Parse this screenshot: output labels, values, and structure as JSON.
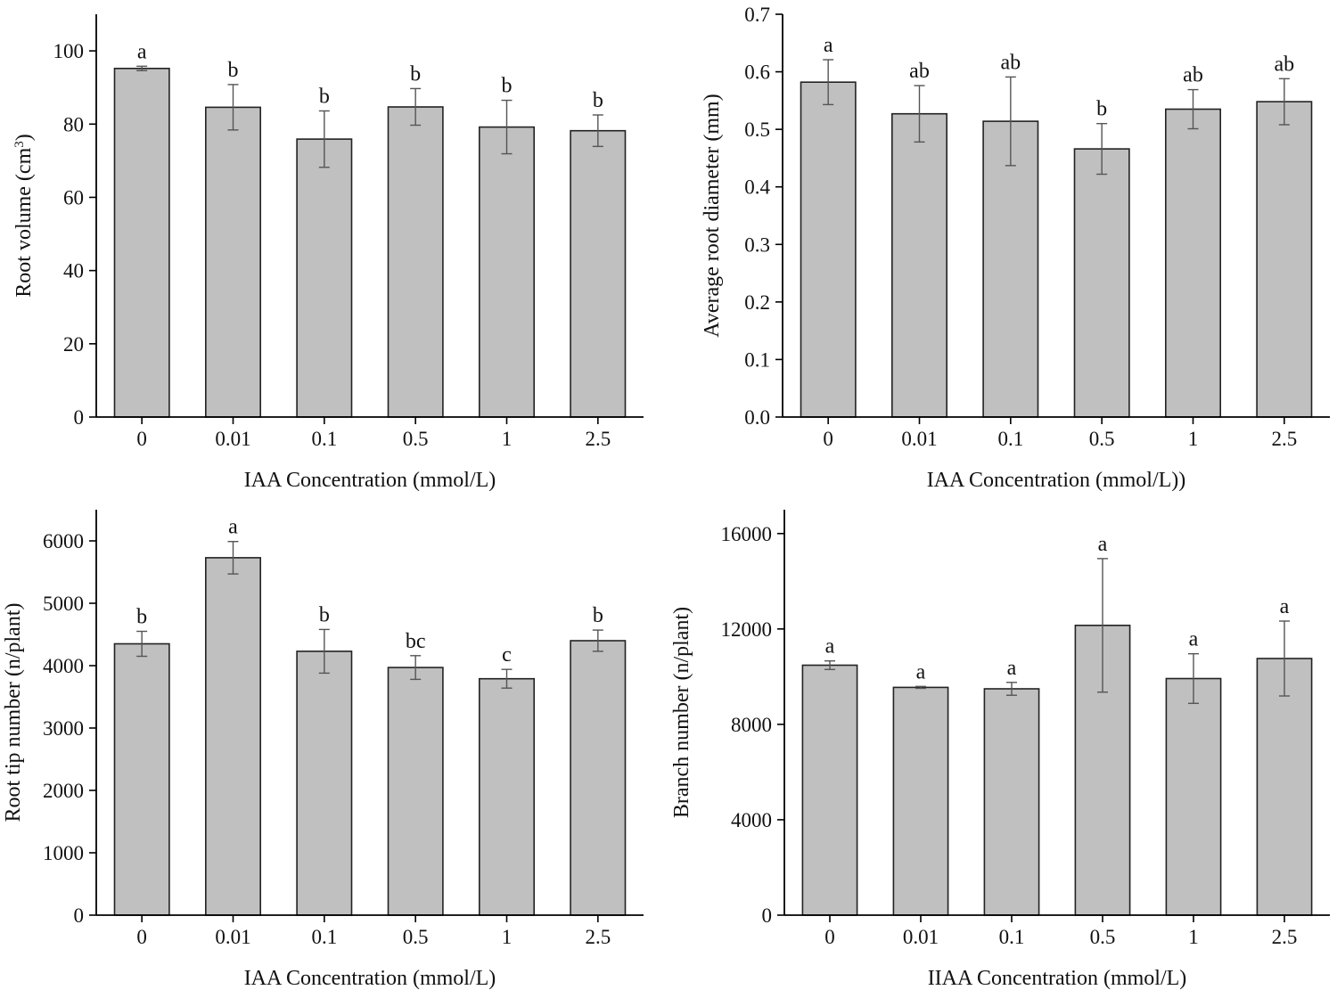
{
  "figure": {
    "colors": {
      "bar_fill": "#c0c0c0",
      "bar_stroke": "#222222",
      "axis": "#000000",
      "error_bar": "#555555",
      "text": "#111111"
    }
  },
  "chart_data": [
    {
      "id": "root-volume",
      "type": "bar",
      "categories": [
        "0",
        "0.01",
        "0.1",
        "0.5",
        "1",
        "2.5"
      ],
      "values": [
        95.2,
        84.6,
        75.9,
        84.7,
        79.2,
        78.2
      ],
      "errors": [
        0.6,
        6.2,
        7.7,
        5.0,
        7.3,
        4.3
      ],
      "significance": [
        "a",
        "b",
        "b",
        "b",
        "b",
        "b"
      ],
      "xlabel": "IAA Concentration (mmol/L)",
      "ylabel": "Root volume (cm",
      "ylabel_superscript": "3",
      "ylabel_suffix": ")",
      "ylim": [
        0,
        110
      ],
      "yticks": [
        0,
        20,
        40,
        60,
        80,
        100
      ],
      "ytick_labels": [
        "0",
        "20",
        "40",
        "60",
        "80",
        "100"
      ]
    },
    {
      "id": "average-root-diameter",
      "type": "bar",
      "categories": [
        "0",
        "0.01",
        "0.1",
        "0.5",
        "1",
        "2.5"
      ],
      "values": [
        0.582,
        0.527,
        0.514,
        0.466,
        0.535,
        0.548
      ],
      "errors": [
        0.039,
        0.049,
        0.077,
        0.044,
        0.034,
        0.04
      ],
      "significance": [
        "a",
        "ab",
        "ab",
        "b",
        "ab",
        "ab"
      ],
      "xlabel": "IAA Concentration (mmol/L))",
      "ylabel": "Average root diameter (mm)",
      "ylim": [
        0,
        0.7
      ],
      "yticks": [
        0,
        0.1,
        0.2,
        0.3,
        0.4,
        0.5,
        0.6,
        0.7
      ],
      "ytick_labels": [
        "0.0",
        "0.1",
        "0.2",
        "0.3",
        "0.4",
        "0.5",
        "0.6",
        "0.7"
      ]
    },
    {
      "id": "root-tip-number",
      "type": "bar",
      "categories": [
        "0",
        "0.01",
        "0.1",
        "0.5",
        "1",
        "2.5"
      ],
      "values": [
        4350,
        5730,
        4230,
        3970,
        3790,
        4400
      ],
      "errors": [
        200,
        260,
        350,
        190,
        150,
        170
      ],
      "significance": [
        "b",
        "a",
        "b",
        "bc",
        "c",
        "b"
      ],
      "xlabel": "IAA Concentration (mmol/L)",
      "ylabel": "Root tip number (n/plant)",
      "ylim": [
        0,
        6500
      ],
      "yticks": [
        0,
        1000,
        2000,
        3000,
        4000,
        5000,
        6000
      ],
      "ytick_labels": [
        "0",
        "1000",
        "2000",
        "3000",
        "4000",
        "5000",
        "6000"
      ]
    },
    {
      "id": "branch-number",
      "type": "bar",
      "categories": [
        "0",
        "0.01",
        "0.1",
        "0.5",
        "1",
        "2.5"
      ],
      "values": [
        10480,
        9550,
        9490,
        12150,
        9920,
        10760
      ],
      "errors": [
        180,
        40,
        270,
        2800,
        1040,
        1570
      ],
      "significance": [
        "a",
        "a",
        "a",
        "a",
        "a",
        "a"
      ],
      "xlabel": "IIAA Concentration (mmol/L)",
      "ylabel": "Branch number (n/plant)",
      "ylim": [
        0,
        17000
      ],
      "yticks": [
        0,
        4000,
        8000,
        12000,
        16000
      ],
      "ytick_labels": [
        "0",
        "4000",
        "8000",
        "12000",
        "16000"
      ]
    }
  ]
}
